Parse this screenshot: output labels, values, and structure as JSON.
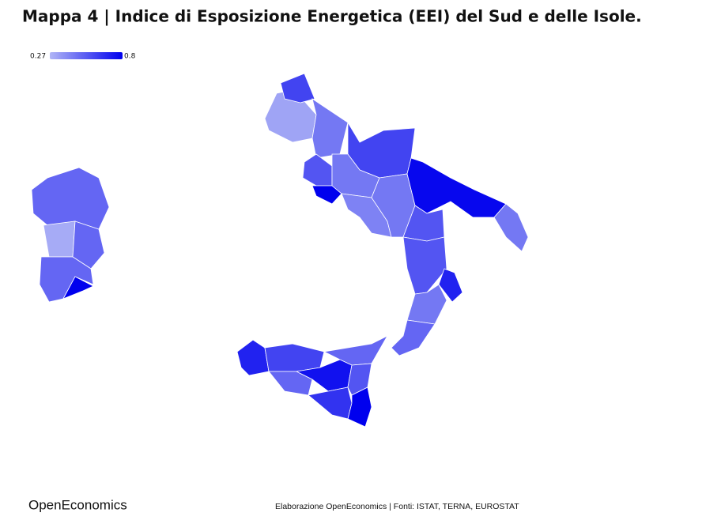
{
  "chart_data": {
    "type": "choropleth",
    "title": "Mappa 4 | Indice di Esposizione Energetica (EEI) del Sud e delle Isole.",
    "scale": {
      "min": 0.27,
      "max": 0.8,
      "colors": [
        "#b0b5f6",
        "#0000ee"
      ]
    },
    "values": [
      0.5,
      0.3,
      0.5,
      0.5,
      0.8,
      0.32,
      0.6,
      0.45,
      0.6,
      0.55,
      0.8,
      0.45,
      0.42,
      0.45,
      0.78,
      0.45,
      0.55,
      0.55,
      0.7,
      0.45,
      0.5,
      0.7,
      0.6,
      0.5,
      0.5,
      0.75,
      0.55,
      0.65,
      0.8
    ]
  },
  "footer": {
    "brand": "OpenEconomics",
    "source": "Elaborazione OpenEconomics | Fonti: ISTAT, TERNA, EUROSTAT"
  }
}
